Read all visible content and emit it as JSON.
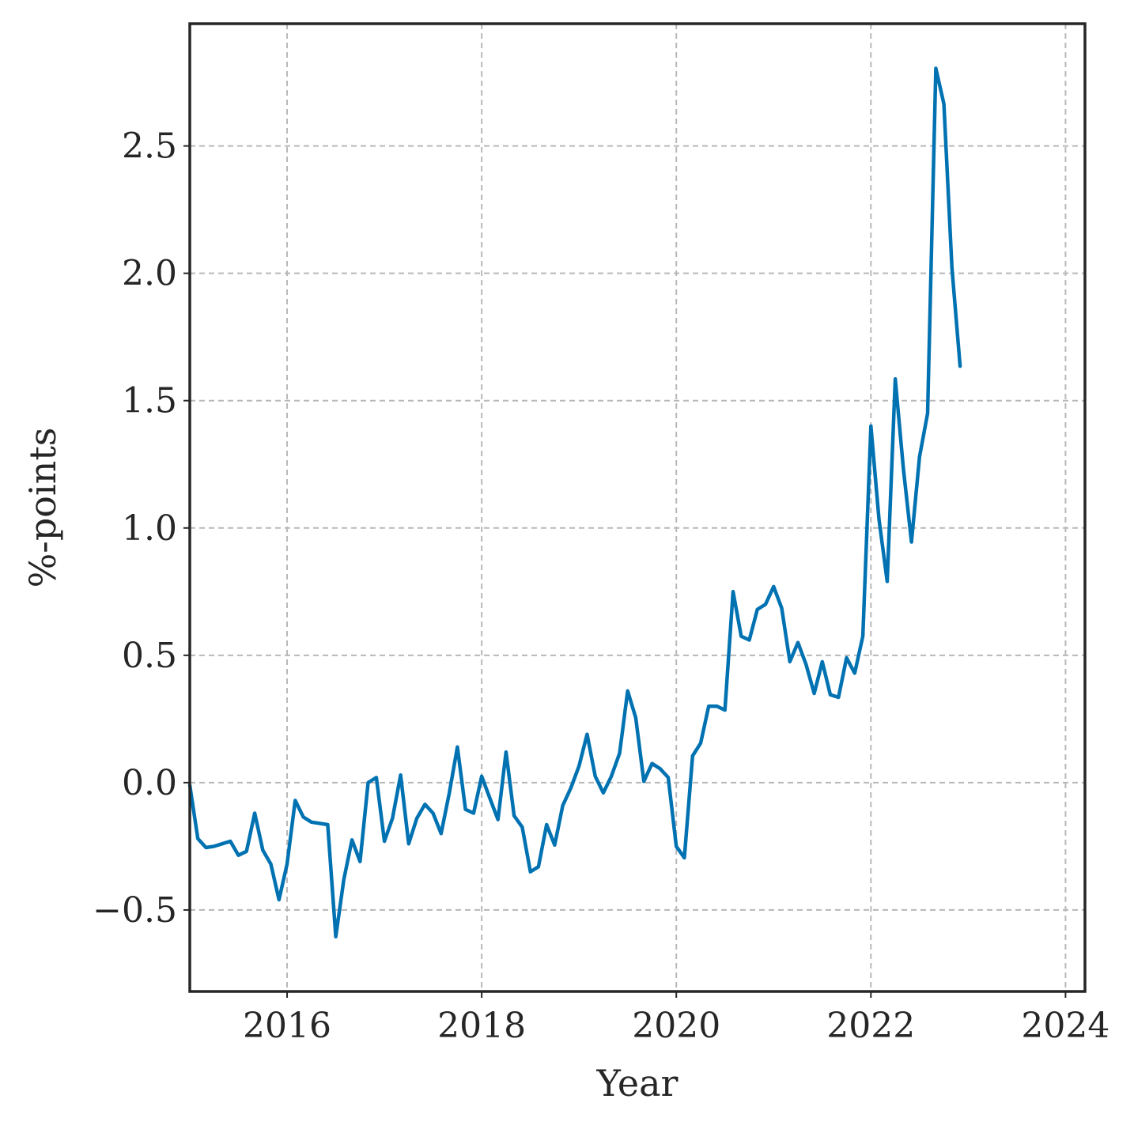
{
  "chart_data": {
    "type": "line",
    "xlabel": "Year",
    "ylabel": "%-points",
    "xlim": [
      2015.0,
      2024.2
    ],
    "ylim": [
      -0.82,
      2.98
    ],
    "x_ticks": [
      2016,
      2018,
      2020,
      2022,
      2024
    ],
    "x_tick_labels": [
      "2016",
      "2018",
      "2020",
      "2022",
      "2024"
    ],
    "y_ticks": [
      -0.5,
      0.0,
      0.5,
      1.0,
      1.5,
      2.0,
      2.5
    ],
    "y_tick_labels": [
      "−0.5",
      "0.0",
      "0.5",
      "1.0",
      "1.5",
      "2.0",
      "2.5"
    ],
    "grid": true,
    "series": [
      {
        "color": "#0072b2",
        "x": [
          2015.0,
          2015.083,
          2015.167,
          2015.25,
          2015.333,
          2015.417,
          2015.5,
          2015.583,
          2015.667,
          2015.75,
          2015.833,
          2015.917,
          2016.0,
          2016.083,
          2016.167,
          2016.25,
          2016.333,
          2016.417,
          2016.5,
          2016.583,
          2016.667,
          2016.75,
          2016.833,
          2016.917,
          2017.0,
          2017.083,
          2017.167,
          2017.25,
          2017.333,
          2017.417,
          2017.5,
          2017.583,
          2017.667,
          2017.75,
          2017.833,
          2017.917,
          2018.0,
          2018.083,
          2018.167,
          2018.25,
          2018.333,
          2018.417,
          2018.5,
          2018.583,
          2018.667,
          2018.75,
          2018.833,
          2018.917,
          2019.0,
          2019.083,
          2019.167,
          2019.25,
          2019.333,
          2019.417,
          2019.5,
          2019.583,
          2019.667,
          2019.75,
          2019.833,
          2019.917,
          2020.0,
          2020.083,
          2020.167,
          2020.25,
          2020.333,
          2020.417,
          2020.5,
          2020.583,
          2020.667,
          2020.75,
          2020.833,
          2020.917,
          2021.0,
          2021.083,
          2021.167,
          2021.25,
          2021.333,
          2021.417,
          2021.5,
          2021.583,
          2021.667,
          2021.75,
          2021.833,
          2021.917,
          2022.0,
          2022.083,
          2022.167,
          2022.25,
          2022.333,
          2022.417,
          2022.5,
          2022.583,
          2022.667,
          2022.75,
          2022.833,
          2022.917
        ],
        "y": [
          -0.01,
          -0.22,
          -0.255,
          -0.25,
          -0.24,
          -0.23,
          -0.285,
          -0.27,
          -0.12,
          -0.265,
          -0.32,
          -0.46,
          -0.32,
          -0.07,
          -0.135,
          -0.155,
          -0.16,
          -0.165,
          -0.605,
          -0.38,
          -0.225,
          -0.31,
          0.0,
          0.02,
          -0.23,
          -0.14,
          0.03,
          -0.24,
          -0.14,
          -0.085,
          -0.12,
          -0.2,
          -0.04,
          0.14,
          -0.105,
          -0.12,
          0.025,
          -0.06,
          -0.145,
          0.12,
          -0.13,
          -0.175,
          -0.35,
          -0.33,
          -0.165,
          -0.245,
          -0.09,
          -0.02,
          0.065,
          0.19,
          0.025,
          -0.04,
          0.025,
          0.115,
          0.36,
          0.255,
          0.005,
          0.075,
          0.055,
          0.02,
          -0.25,
          -0.295,
          0.105,
          0.155,
          0.3,
          0.3,
          0.285,
          0.75,
          0.575,
          0.56,
          0.68,
          0.7,
          0.77,
          0.685,
          0.475,
          0.55,
          0.465,
          0.35,
          0.475,
          0.345,
          0.335,
          0.49,
          0.43,
          0.575,
          1.4,
          1.035,
          0.79,
          1.585,
          1.235,
          0.945,
          1.28,
          1.45,
          2.805,
          2.665,
          2.02,
          1.635
        ]
      }
    ]
  }
}
